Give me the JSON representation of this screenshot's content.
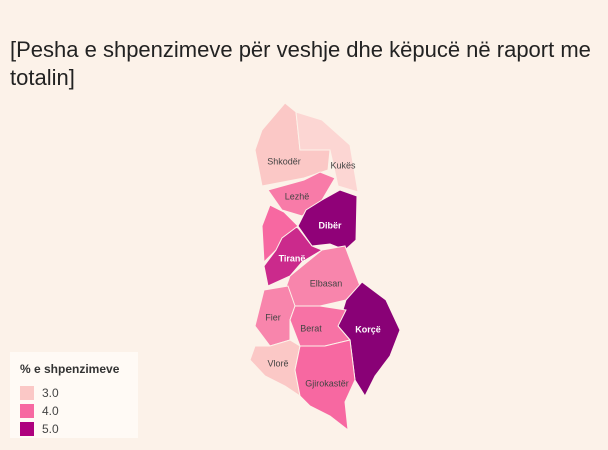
{
  "title": "[Pesha e shpenzimeve për veshje dhe këpucë në raport me totalin]",
  "legend": {
    "title": "% e shpenzimeve",
    "items": [
      {
        "value": 3,
        "label": "3.0",
        "color": "#fbc8c6"
      },
      {
        "value": 4,
        "label": "4.0",
        "color": "#f768a1"
      },
      {
        "value": 5,
        "label": "5.0",
        "color": "#ae017e"
      }
    ]
  },
  "regions": [
    {
      "name": "Shkodër",
      "value": 3.0
    },
    {
      "name": "Kukës",
      "value": 2.6
    },
    {
      "name": "Lezhë",
      "value": 3.8
    },
    {
      "name": "Dibër",
      "value": 5.4
    },
    {
      "name": "Tiranë",
      "value": 4.6
    },
    {
      "name": null,
      "value": 4.0
    },
    {
      "name": "Elbasan",
      "value": 3.7
    },
    {
      "name": "Korçë",
      "value": 5.5
    },
    {
      "name": "Fier",
      "value": 3.7
    },
    {
      "name": "Berat",
      "value": 3.9
    },
    {
      "name": "Vlorë",
      "value": 3.0
    },
    {
      "name": "Gjirokastër",
      "value": 4.0
    }
  ]
}
